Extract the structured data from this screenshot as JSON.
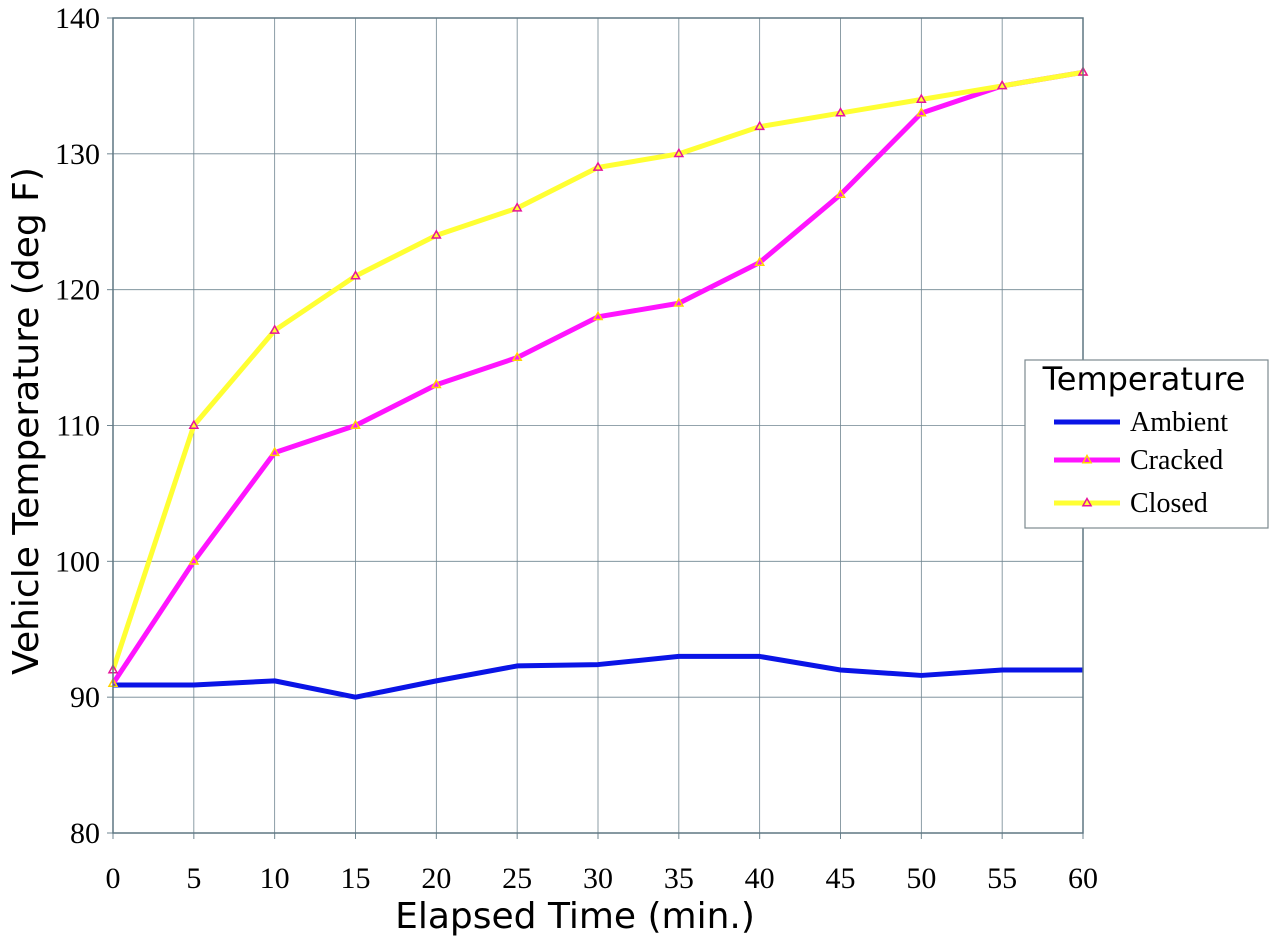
{
  "chart_data": {
    "type": "line",
    "xlabel": "Elapsed Time (min.)",
    "ylabel": "Vehicle Temperature (deg F)",
    "x": [
      0,
      5,
      10,
      15,
      20,
      25,
      30,
      35,
      40,
      45,
      50,
      55,
      60
    ],
    "xlim": [
      0,
      60
    ],
    "ylim": [
      80,
      140
    ],
    "xticks": [
      "0",
      "5",
      "10",
      "15",
      "20",
      "25",
      "30",
      "35",
      "40",
      "45",
      "50",
      "55",
      "60"
    ],
    "yticks": [
      "80",
      "90",
      "100",
      "110",
      "120",
      "130",
      "140"
    ],
    "grid": true,
    "legend": {
      "title": "Temperature",
      "placement": "right"
    },
    "series": [
      {
        "name": "Ambient",
        "color": "#0a14e6",
        "marker": "none",
        "values": [
          90.9,
          90.9,
          91.2,
          90.0,
          91.2,
          92.3,
          92.4,
          93.0,
          93.0,
          92.0,
          91.6,
          92.0,
          92.0
        ]
      },
      {
        "name": "Cracked",
        "color": "#ff14ff",
        "marker": "triangle",
        "marker_color": "#ffd400",
        "values": [
          91,
          100,
          108,
          110,
          113,
          115,
          118,
          119,
          122,
          127,
          133,
          135,
          136
        ]
      },
      {
        "name": "Closed",
        "color": "#ffff33",
        "marker": "triangle",
        "marker_color": "#e6149b",
        "values": [
          92,
          110,
          117,
          121,
          124,
          126,
          129,
          130,
          132,
          133,
          134,
          135,
          136
        ]
      }
    ]
  }
}
